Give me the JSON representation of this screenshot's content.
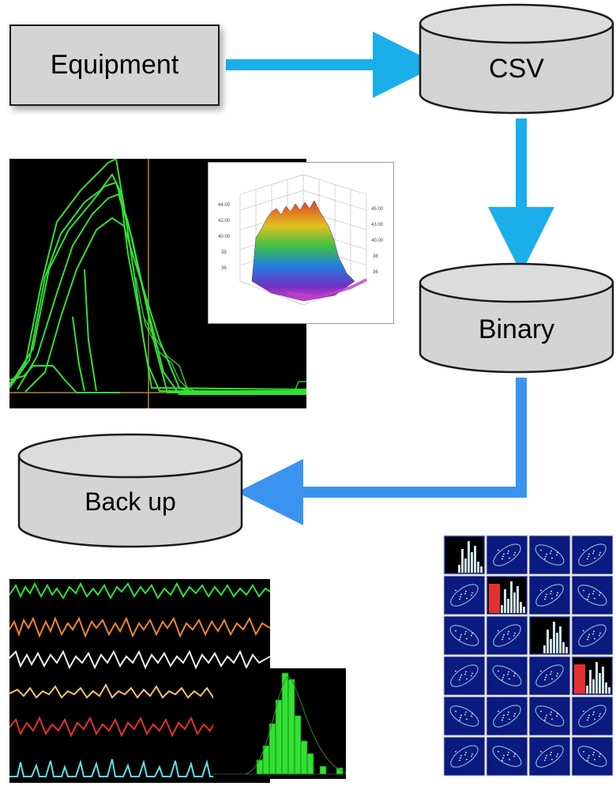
{
  "nodes": {
    "equipment": {
      "label": "Equipment"
    },
    "csv": {
      "label": "CSV"
    },
    "binary": {
      "label": "Binary"
    },
    "backup": {
      "label": "Back up"
    }
  },
  "colors": {
    "box_fill": "#d4d4d4",
    "box_stroke": "#1a1a1a",
    "arrow_light_blue": "#1aaeea",
    "arrow_blue": "#3b93f0",
    "plot_bg": "#000000",
    "trace_green": "#33e033",
    "trace_orange": "#f0872a",
    "trace_white": "#f2f2f2",
    "trace_tan": "#f0c07a",
    "trace_red": "#e53030",
    "trace_cyan": "#5ce0e8",
    "matrix_bg": "#0a1a80"
  },
  "images": [
    {
      "icon": "oscilloscope-traces-image"
    },
    {
      "icon": "3d-surface-plot-image"
    },
    {
      "icon": "multichannel-signal-traces-image"
    },
    {
      "icon": "histogram-image"
    },
    {
      "icon": "scatter-plot-matrix-image"
    }
  ]
}
